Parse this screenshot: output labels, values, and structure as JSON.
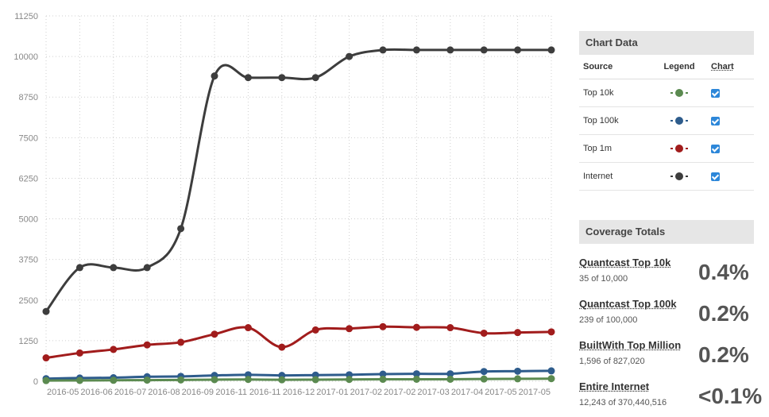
{
  "chart_data": {
    "type": "line",
    "yticks": [
      "11250",
      "10000",
      "8750",
      "7500",
      "6250",
      "5000",
      "3750",
      "2500",
      "1250",
      "0"
    ],
    "ylim": [
      0,
      11250
    ],
    "x": [
      "2016-05",
      "2016-06",
      "2016-07",
      "2016-07",
      "2016-08",
      "2016-09",
      "2016-11",
      "2016-11",
      "2016-12",
      "2017-01",
      "2017-02",
      "2017-02",
      "2017-03",
      "2017-04",
      "2017-05",
      "2017-05"
    ],
    "xticks": [
      "2016-05",
      "2016-06",
      "2016-07",
      "2016-08",
      "2016-09",
      "2016-11",
      "2016-11",
      "2016-12",
      "2017-01",
      "2017-02",
      "2017-02",
      "2017-03",
      "2017-04",
      "2017-05",
      "2017-05"
    ],
    "grid": true,
    "series": [
      {
        "name": "Internet",
        "color": "#3d3d3d",
        "values": [
          2150,
          3500,
          3500,
          3500,
          4700,
          9400,
          9350,
          9350,
          9350,
          10000,
          10200,
          10200,
          10200,
          10200,
          10200,
          10200
        ]
      },
      {
        "name": "Top 1m",
        "color": "#a11c1c",
        "values": [
          720,
          870,
          980,
          1120,
          1200,
          1450,
          1650,
          1050,
          1580,
          1620,
          1680,
          1660,
          1650,
          1480,
          1500,
          1520
        ]
      },
      {
        "name": "Top 100k",
        "color": "#2e5c8c",
        "values": [
          80,
          100,
          110,
          140,
          150,
          180,
          200,
          180,
          190,
          200,
          220,
          230,
          230,
          300,
          310,
          320
        ]
      },
      {
        "name": "Top 10k",
        "color": "#5b8a50",
        "values": [
          20,
          25,
          30,
          35,
          40,
          50,
          55,
          45,
          50,
          55,
          60,
          62,
          62,
          70,
          75,
          80
        ]
      }
    ]
  },
  "chart_panel": {
    "title": "Chart Data",
    "headers": {
      "source": "Source",
      "legend": "Legend",
      "chart": "Chart"
    },
    "rows": [
      {
        "source": "Top 10k",
        "color": "#5b8a50",
        "checked": true
      },
      {
        "source": "Top 100k",
        "color": "#2e5c8c",
        "checked": true
      },
      {
        "source": "Top 1m",
        "color": "#a11c1c",
        "checked": true
      },
      {
        "source": "Internet",
        "color": "#3d3d3d",
        "checked": true
      }
    ]
  },
  "coverage": {
    "title": "Coverage Totals",
    "items": [
      {
        "title": "Quantcast Top 10k",
        "sub": "35 of 10,000",
        "pct": "0.4%"
      },
      {
        "title": "Quantcast Top 100k",
        "sub": "239 of 100,000",
        "pct": "0.2%"
      },
      {
        "title": "BuiltWith Top Million",
        "sub": "1,596 of 827,020",
        "pct": "0.2%"
      },
      {
        "title": "Entire Internet",
        "sub": "12,243 of 370,440,516",
        "pct": "<0.1%"
      }
    ]
  }
}
